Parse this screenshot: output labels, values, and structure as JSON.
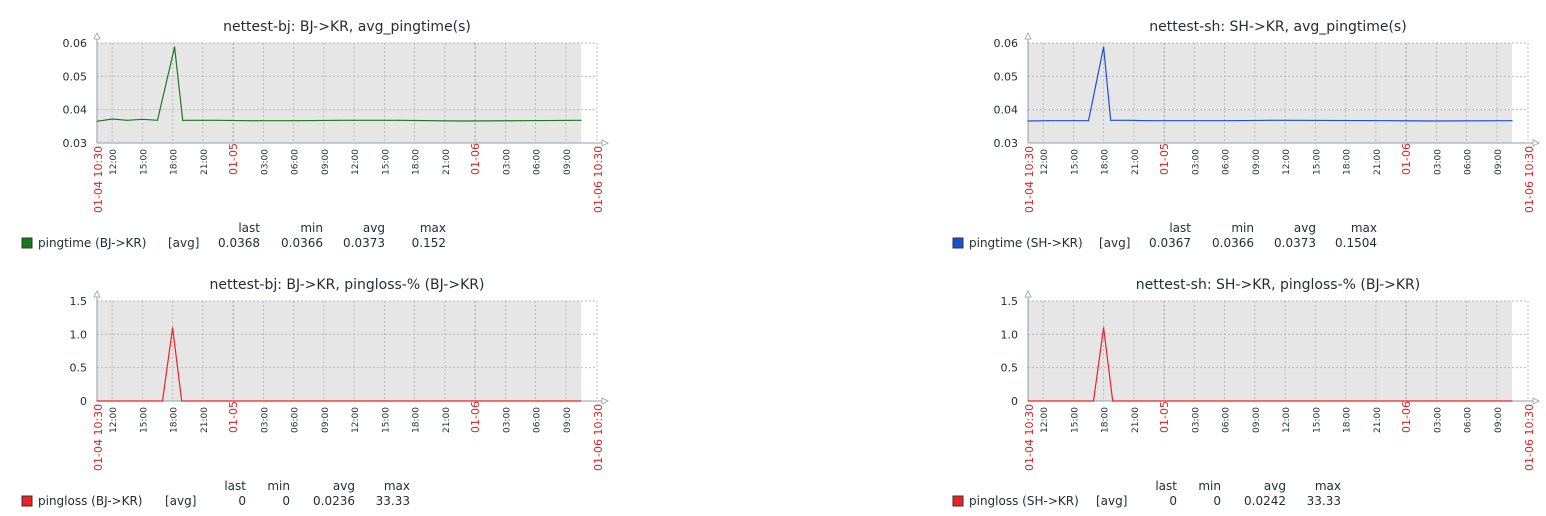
{
  "panels": [
    {
      "id": "bj-pingtime",
      "chart_data": {
        "type": "line",
        "title": "nettest-bj: BJ->KR, avg_pingtime(s)",
        "x_start_label": "01-04 10:30",
        "x_end_label": "01-06 10:30",
        "x_tick_labels": [
          "12:00",
          "15:00",
          "18:00",
          "21:00",
          "01-05",
          "03:00",
          "06:00",
          "09:00",
          "12:00",
          "15:00",
          "18:00",
          "21:00",
          "01-06",
          "03:00",
          "06:00",
          "09:00"
        ],
        "x_red_labels": [
          "01-05",
          "01-06"
        ],
        "y_ticks": [
          "0.06",
          "0.05",
          "0.04",
          "0.03"
        ],
        "ylim": [
          0.03,
          0.06
        ],
        "series": [
          {
            "name": "pingtime (BJ->KR)",
            "color": "#1a7a1a",
            "x_hours": [
              0,
              1.5,
              3,
              4.5,
              6,
              7.7,
              8.5,
              9,
              10.5,
              12,
              15,
              20,
              24,
              30,
              36,
              42,
              48
            ],
            "values": [
              0.0365,
              0.0372,
              0.0368,
              0.0371,
              0.0368,
              0.0588,
              0.0368,
              0.0368,
              0.0368,
              0.0368,
              0.0367,
              0.0367,
              0.0368,
              0.0368,
              0.0366,
              0.0367,
              0.0368
            ]
          }
        ],
        "legend": {
          "label": "pingtime (BJ->KR)",
          "agg": "[avg]",
          "headers": [
            "last",
            "min",
            "avg",
            "max"
          ],
          "values": [
            "0.0368",
            "0.0366",
            "0.0373",
            "0.152"
          ]
        }
      }
    },
    {
      "id": "sh-pingtime",
      "chart_data": {
        "type": "line",
        "title": "nettest-sh: SH->KR, avg_pingtime(s)",
        "x_start_label": "01-04 10:30",
        "x_end_label": "01-06 10:30",
        "x_tick_labels": [
          "12:00",
          "15:00",
          "18:00",
          "21:00",
          "01-05",
          "03:00",
          "06:00",
          "09:00",
          "12:00",
          "15:00",
          "18:00",
          "21:00",
          "01-06",
          "03:00",
          "06:00",
          "09:00"
        ],
        "x_red_labels": [
          "01-05",
          "01-06"
        ],
        "y_ticks": [
          "0.06",
          "0.05",
          "0.04",
          "0.03"
        ],
        "ylim": [
          0.03,
          0.06
        ],
        "series": [
          {
            "name": "pingtime (SH->KR)",
            "color": "#1a4fd6",
            "x_hours": [
              0,
              2,
              6,
              7.5,
              8.2,
              10,
              12,
              20,
              24,
              26,
              36,
              40,
              48
            ],
            "values": [
              0.0366,
              0.0367,
              0.0367,
              0.0588,
              0.0368,
              0.0368,
              0.0367,
              0.0367,
              0.0368,
              0.0368,
              0.0367,
              0.0366,
              0.0367
            ]
          }
        ],
        "legend": {
          "label": "pingtime (SH->KR)",
          "agg": "[avg]",
          "headers": [
            "last",
            "min",
            "avg",
            "max"
          ],
          "values": [
            "0.0367",
            "0.0366",
            "0.0373",
            "0.1504"
          ]
        }
      }
    },
    {
      "id": "bj-pingloss",
      "chart_data": {
        "type": "line",
        "title": "nettest-bj: BJ->KR, pingloss-% (BJ->KR)",
        "x_start_label": "01-04 10:30",
        "x_end_label": "01-06 10:30",
        "x_tick_labels": [
          "12:00",
          "15:00",
          "18:00",
          "21:00",
          "01-05",
          "03:00",
          "06:00",
          "09:00",
          "12:00",
          "15:00",
          "18:00",
          "21:00",
          "01-06",
          "03:00",
          "06:00",
          "09:00"
        ],
        "x_red_labels": [
          "01-05",
          "01-06"
        ],
        "y_ticks": [
          "1.5",
          "1.0",
          "0.5",
          "0"
        ],
        "ylim": [
          0,
          1.5
        ],
        "series": [
          {
            "name": "pingloss (BJ->KR)",
            "color": "#ee2222",
            "x_hours": [
              0,
              6.5,
              7.5,
              8.4,
              48
            ],
            "values": [
              0,
              0,
              1.1,
              0,
              0
            ]
          }
        ],
        "legend": {
          "label": "pingloss (BJ->KR)",
          "agg": "[avg]",
          "headers": [
            "last",
            "min",
            "avg",
            "max"
          ],
          "values": [
            "0",
            "0",
            "0.0236",
            "33.33"
          ]
        }
      }
    },
    {
      "id": "sh-pingloss",
      "chart_data": {
        "type": "line",
        "title": "nettest-sh: SH->KR, pingloss-% (BJ->KR)",
        "x_start_label": "01-04 10:30",
        "x_end_label": "01-06 10:30",
        "x_tick_labels": [
          "12:00",
          "15:00",
          "18:00",
          "21:00",
          "01-05",
          "03:00",
          "06:00",
          "09:00",
          "12:00",
          "15:00",
          "18:00",
          "21:00",
          "01-06",
          "03:00",
          "06:00",
          "09:00"
        ],
        "x_red_labels": [
          "01-05",
          "01-06"
        ],
        "y_ticks": [
          "1.5",
          "1.0",
          "0.5",
          "0"
        ],
        "ylim": [
          0,
          1.5
        ],
        "series": [
          {
            "name": "pingloss (SH->KR)",
            "color": "#ee2222",
            "x_hours": [
              0,
              6.5,
              7.5,
              8.4,
              48
            ],
            "values": [
              0,
              0,
              1.1,
              0,
              0
            ]
          }
        ],
        "legend": {
          "label": "pingloss (SH->KR)",
          "agg": "[avg]",
          "headers": [
            "last",
            "min",
            "avg",
            "max"
          ],
          "values": [
            "0",
            "0",
            "0.0242",
            "33.33"
          ]
        }
      }
    }
  ]
}
